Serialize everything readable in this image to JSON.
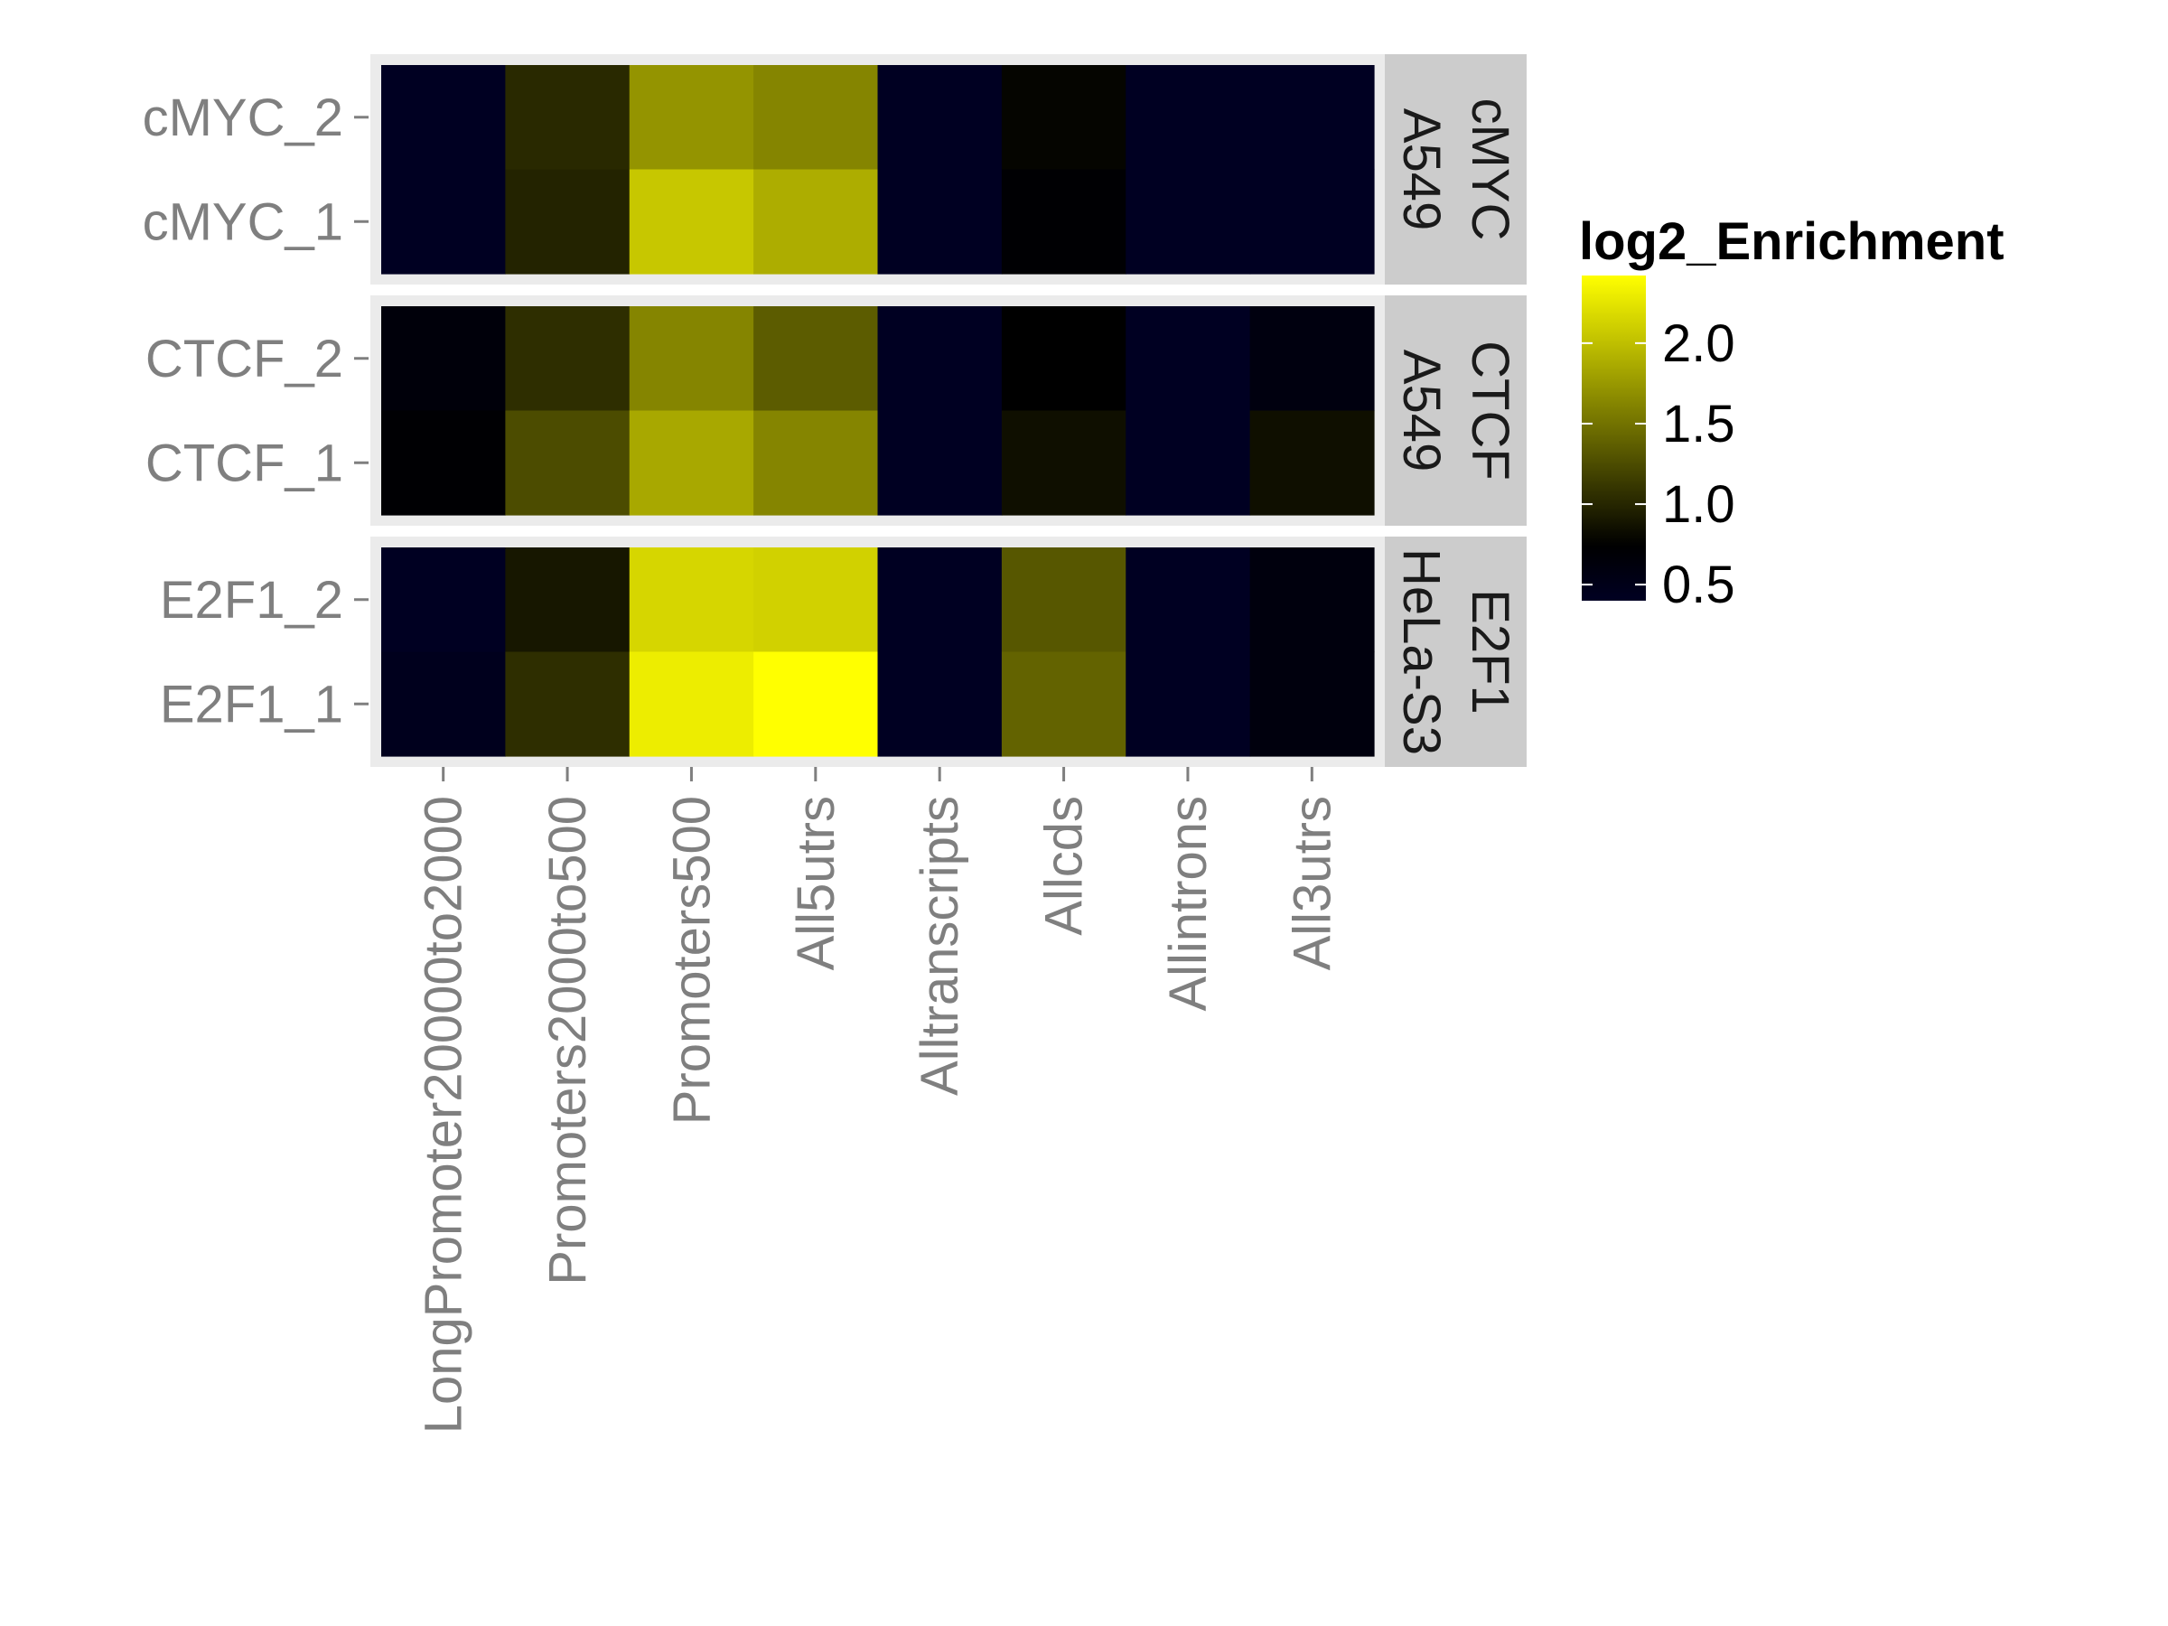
{
  "chart_data": {
    "type": "heatmap",
    "title": "",
    "xlabel": "",
    "ylabel": "",
    "x_categories": [
      "LongPromoter20000to2000",
      "Promoters2000to500",
      "Promoters500",
      "All5utrs",
      "Alltranscripts",
      "Allcds",
      "Allintrons",
      "All3utrs"
    ],
    "facets": [
      {
        "strip": [
          "cMYC",
          "A549"
        ],
        "rows": [
          {
            "label": "cMYC_2",
            "values": [
              0.4,
              1.02,
              1.72,
              1.62,
              0.4,
              0.78,
              0.4,
              0.4
            ]
          },
          {
            "label": "cMYC_1",
            "values": [
              0.4,
              0.98,
              2.05,
              1.88,
              0.4,
              0.72,
              0.4,
              0.4
            ]
          }
        ]
      },
      {
        "strip": [
          "CTCF",
          "A549"
        ],
        "rows": [
          {
            "label": "CTCF_2",
            "values": [
              0.65,
              1.05,
              1.62,
              1.35,
              0.4,
              0.75,
              0.4,
              0.6
            ]
          },
          {
            "label": "CTCF_1",
            "values": [
              0.72,
              1.25,
              1.85,
              1.62,
              0.4,
              0.85,
              0.4,
              0.85
            ]
          }
        ]
      },
      {
        "strip": [
          "E2F1",
          "HeLa-S3"
        ],
        "rows": [
          {
            "label": "E2F1_2",
            "values": [
              0.4,
              0.9,
              2.15,
              2.12,
              0.4,
              1.32,
              0.4,
              0.62
            ]
          },
          {
            "label": "E2F1_1",
            "values": [
              0.45,
              1.05,
              2.3,
              2.42,
              0.4,
              1.4,
              0.4,
              0.62
            ]
          }
        ]
      }
    ],
    "legend": {
      "title": "log2_Enrichment",
      "breaks": [
        "0.5",
        "1.0",
        "1.5",
        "2.0"
      ],
      "domain": [
        0.4,
        2.42
      ],
      "colors": {
        "low": "#000022",
        "mid": "#000000",
        "high": "#ffff00"
      },
      "midpoint": 0.75,
      "placement": "right"
    },
    "grid": true
  }
}
